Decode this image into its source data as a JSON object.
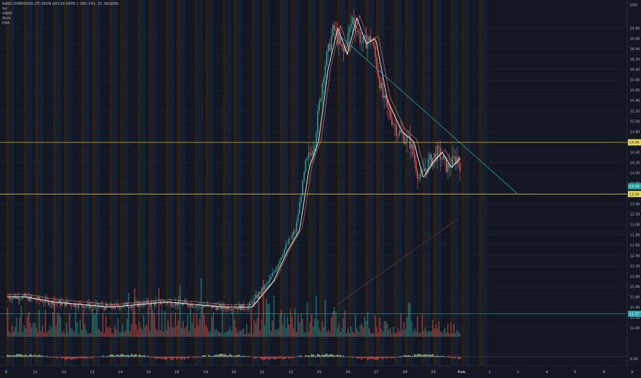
{
  "header": {
    "symbol_line": "NANO DIMENSION LTD SPON ADS EA REPR 1 ORD 5HS, 15, NASDAQ",
    "indicators": [
      "Vol",
      "VWAP",
      "3bVu",
      "EMA"
    ]
  },
  "price_axis": {
    "currency": "USD",
    "ticks": [
      "16.80",
      "16.60",
      "16.40",
      "16.20",
      "16.00",
      "15.80",
      "15.60",
      "15.40",
      "15.20",
      "15.00",
      "14.80",
      "14.60",
      "14.40",
      "14.20",
      "14.00",
      "13.80",
      "13.60",
      "13.40",
      "13.20",
      "13.00",
      "12.80",
      "12.60",
      "12.40",
      "12.20",
      "12.00",
      "11.80",
      "11.60",
      "11.40",
      "11.20",
      "11.00",
      "0.00"
    ]
  },
  "time_axis": {
    "ticks": [
      "8",
      "11",
      "12",
      "13",
      "14",
      "15",
      "18",
      "19",
      "20",
      "21",
      "22",
      "25",
      "26",
      "27",
      "28",
      "29",
      "Feb",
      "2",
      "3",
      "4",
      "5",
      "8",
      "9"
    ]
  },
  "badges": {
    "resistance": "14.59",
    "last_price": "13.74",
    "support": "13.59",
    "volume_line": "11.27"
  },
  "colors": {
    "background": "#131722",
    "up": "#26a69a",
    "down": "#ef5350",
    "level_line": "#d4c23a",
    "trendline": "#2aa3a9",
    "session_orange": "#2a1f15",
    "session_blue": "#141f33",
    "vwap": "#ffffff",
    "ema": "#ff8c7a"
  },
  "chart_data": {
    "type": "candlestick",
    "title": "NANO DIMENSION LTD SPON ADS EA REPR 1 ORD 5HS, 15, NASDAQ",
    "yunit": "USD",
    "ylim": [
      10.95,
      17.05
    ],
    "horizontal_levels": [
      14.59,
      13.59,
      11.27
    ],
    "last_price": 13.74,
    "categories": [
      "8",
      "11",
      "12",
      "13",
      "14",
      "15",
      "18",
      "19",
      "20",
      "21",
      "22",
      "25",
      "26",
      "27",
      "28",
      "29",
      "Feb",
      "2",
      "3",
      "4",
      "5",
      "8",
      "9"
    ],
    "price_path": [
      [
        "8",
        11.6
      ],
      [
        "11",
        11.5
      ],
      [
        "12",
        11.45
      ],
      [
        "13",
        11.4
      ],
      [
        "14",
        11.45
      ],
      [
        "15",
        11.5
      ],
      [
        "18",
        11.45
      ],
      [
        "19",
        11.4
      ],
      [
        "20",
        11.4
      ],
      [
        "21",
        11.9
      ],
      [
        "21",
        12.5
      ],
      [
        "22",
        12.9
      ],
      [
        "22",
        14.1
      ],
      [
        "22",
        14.6
      ],
      [
        "25",
        16.0
      ],
      [
        "25",
        16.8
      ],
      [
        "25",
        16.3
      ],
      [
        "26",
        17.0
      ],
      [
        "26",
        16.5
      ],
      [
        "26",
        16.6
      ],
      [
        "27",
        15.4
      ],
      [
        "27",
        14.8
      ],
      [
        "28",
        14.6
      ],
      [
        "28",
        13.9
      ],
      [
        "28",
        14.2
      ],
      [
        "29",
        14.4
      ],
      [
        "29",
        14.1
      ],
      [
        "29",
        14.3
      ],
      [
        "Feb",
        13.9
      ],
      [
        "Feb",
        14.3
      ],
      [
        "Feb",
        13.8
      ]
    ],
    "volume": [
      [
        "8",
        0.35
      ],
      [
        "11",
        0.55
      ],
      [
        "12",
        0.3
      ],
      [
        "13",
        0.4
      ],
      [
        "14",
        0.7
      ],
      [
        "15",
        0.9
      ],
      [
        "18",
        0.8
      ],
      [
        "19",
        0.4
      ],
      [
        "20",
        0.35
      ],
      [
        "21",
        1.0
      ],
      [
        "22",
        0.6
      ],
      [
        "25",
        0.5
      ],
      [
        "26",
        0.4
      ],
      [
        "27",
        0.45
      ],
      [
        "28",
        0.6
      ],
      [
        "29",
        0.4
      ],
      [
        "Feb",
        0.35
      ]
    ]
  }
}
